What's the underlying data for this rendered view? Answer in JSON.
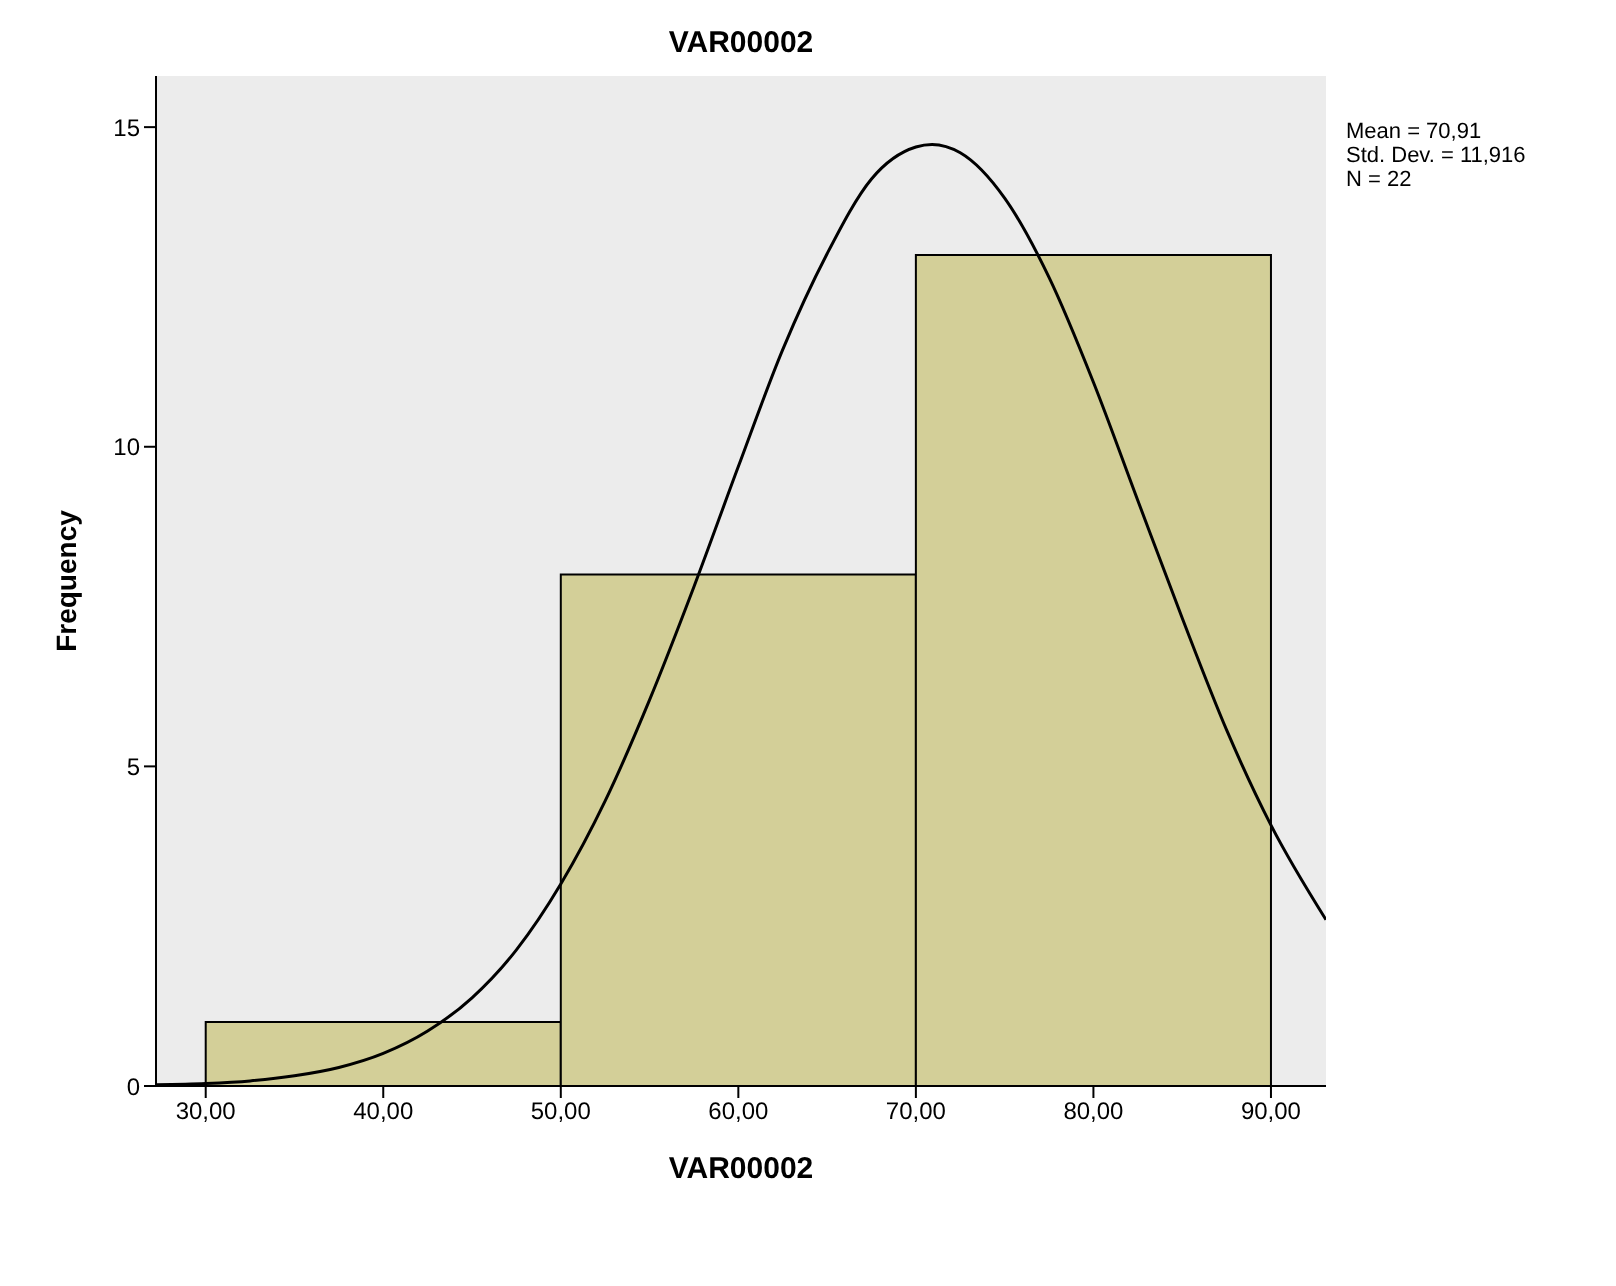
{
  "chart_data": {
    "type": "histogram",
    "title": "VAR00002",
    "xlabel": "VAR00002",
    "ylabel": "Frequency",
    "xlim": [
      27.2,
      93.1
    ],
    "ylim": [
      0,
      15.8
    ],
    "xticks": [
      {
        "value": 30,
        "label": "30,00"
      },
      {
        "value": 40,
        "label": "40,00"
      },
      {
        "value": 50,
        "label": "50,00"
      },
      {
        "value": 60,
        "label": "60,00"
      },
      {
        "value": 70,
        "label": "70,00"
      },
      {
        "value": 80,
        "label": "80,00"
      },
      {
        "value": 90,
        "label": "90,00"
      }
    ],
    "yticks": [
      0,
      5,
      10,
      15
    ],
    "series": [
      {
        "bins": [
          30,
          50,
          70,
          90
        ],
        "values": [
          1,
          8,
          13
        ],
        "color": "#d3cf98"
      },
      {
        "type": "line",
        "color": "#000000",
        "x": [
          27.2,
          30,
          32.5,
          35,
          37.5,
          40,
          42.5,
          45,
          47.5,
          50,
          52.5,
          55,
          57.5,
          60,
          62.5,
          65,
          67.5,
          70,
          70.91,
          72.5,
          75,
          77.5,
          80,
          82.5,
          85,
          87.5,
          90,
          93.1
        ],
        "values": [
          0.02,
          0.04,
          0.08,
          0.16,
          0.29,
          0.51,
          0.86,
          1.38,
          2.13,
          3.16,
          4.46,
          6.04,
          7.81,
          9.69,
          11.52,
          13.02,
          14.19,
          14.69,
          14.73,
          14.6,
          13.89,
          12.65,
          11.01,
          9.16,
          7.32,
          5.57,
          4.08,
          2.6
        ]
      }
    ],
    "annotations": [
      "Mean = 70,91",
      "Std. Dev. = 11,916",
      "N = 22"
    ]
  }
}
